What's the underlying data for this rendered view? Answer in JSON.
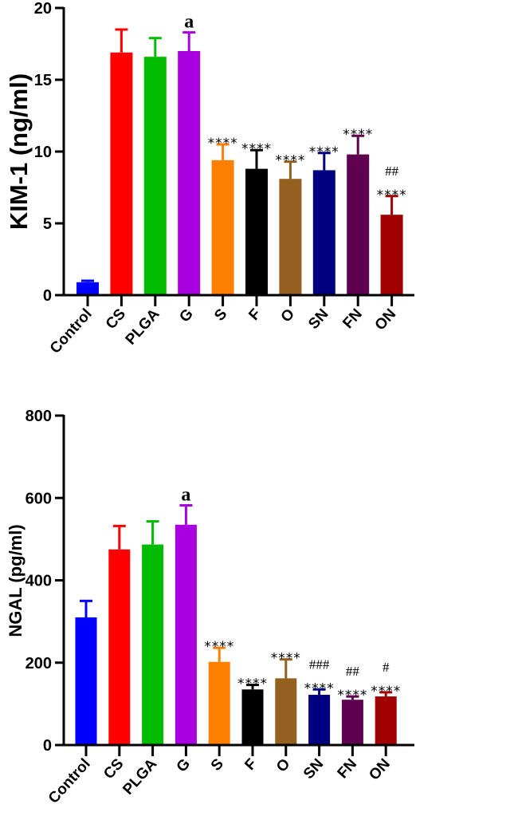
{
  "chart_data": [
    {
      "type": "bar",
      "ylabel": "KIM-1 (ng/ml)",
      "ylim": [
        0,
        20
      ],
      "yticks": [
        0,
        5,
        10,
        15,
        20
      ],
      "categories": [
        "Control",
        "CS",
        "PLGA",
        "G",
        "S",
        "F",
        "O",
        "SN",
        "FN",
        "ON"
      ],
      "values": [
        0.9,
        16.9,
        16.6,
        17.0,
        9.4,
        8.8,
        8.1,
        8.7,
        9.8,
        5.6
      ],
      "error_upper": [
        1.0,
        18.5,
        17.9,
        18.3,
        10.5,
        10.1,
        9.3,
        9.9,
        11.1,
        6.9
      ],
      "colors": [
        "#0000ff",
        "#ff0000",
        "#00bb00",
        "#a800e0",
        "#ff8000",
        "#000000",
        "#946020",
        "#000080",
        "#600050",
        "#a00000"
      ],
      "annotations": [
        [],
        [],
        [],
        [
          "a"
        ],
        [
          "****"
        ],
        [
          "****"
        ],
        [
          "****"
        ],
        [
          "****"
        ],
        [
          "****"
        ],
        [
          "##",
          "****"
        ]
      ]
    },
    {
      "type": "bar",
      "ylabel": "NGAL (pg/ml)",
      "ylim": [
        0,
        800
      ],
      "yticks": [
        0,
        200,
        400,
        600,
        800
      ],
      "categories": [
        "Control",
        "CS",
        "PLGA",
        "G",
        "S",
        "F",
        "O",
        "SN",
        "FN",
        "ON"
      ],
      "values": [
        310,
        475,
        487,
        535,
        202,
        135,
        162,
        122,
        110,
        118
      ],
      "error_upper": [
        350,
        532,
        543,
        582,
        236,
        146,
        208,
        135,
        118,
        128
      ],
      "colors": [
        "#0000ff",
        "#ff0000",
        "#00bb00",
        "#a800e0",
        "#ff8000",
        "#000000",
        "#946020",
        "#000080",
        "#600050",
        "#a00000"
      ],
      "annotations": [
        [],
        [],
        [],
        [
          "a"
        ],
        [
          "****"
        ],
        [
          "****"
        ],
        [
          "****"
        ],
        [
          "###",
          "****"
        ],
        [
          "##",
          "****"
        ],
        [
          "#",
          "****"
        ]
      ]
    }
  ]
}
